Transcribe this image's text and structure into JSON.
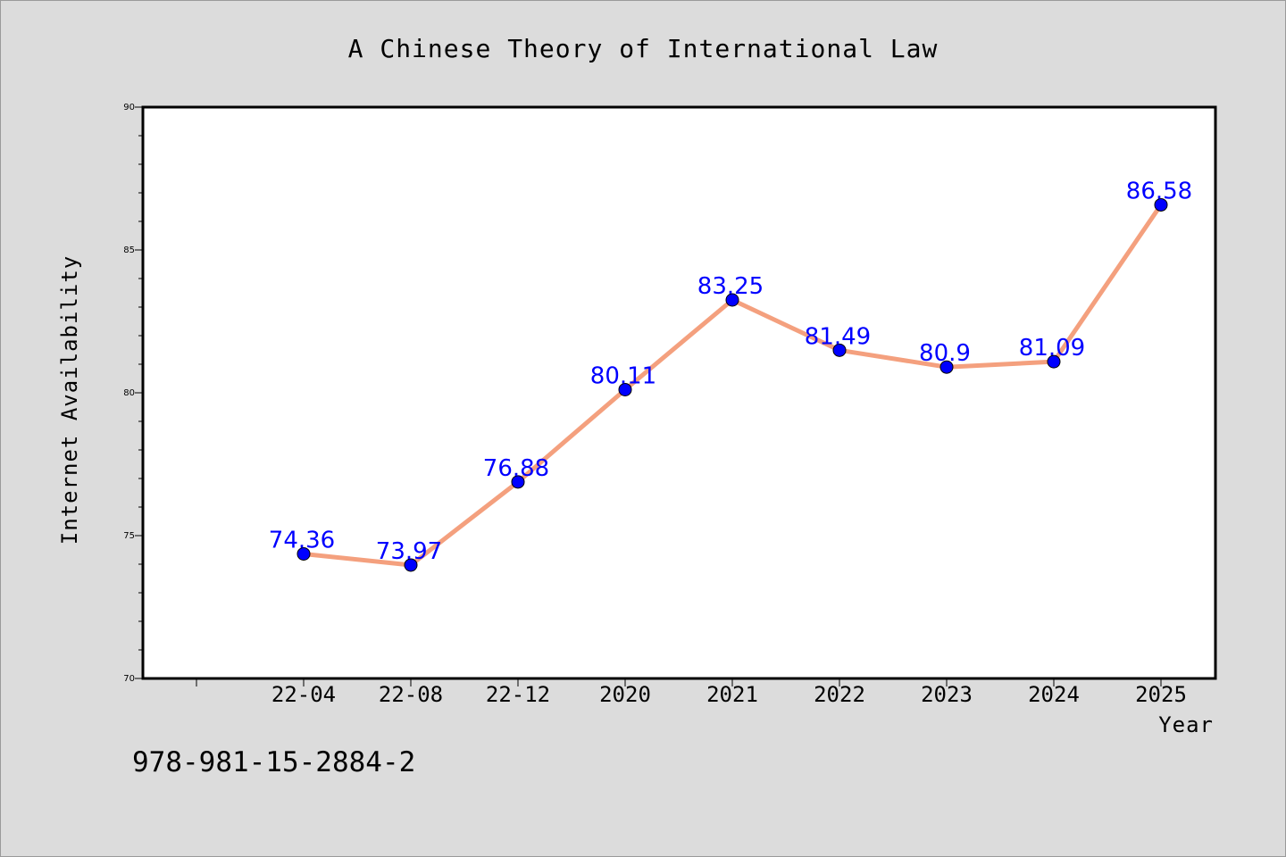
{
  "chart_data": {
    "type": "line",
    "title": "A Chinese Theory of International Law",
    "xlabel": "Year",
    "ylabel": "Internet Availability",
    "categories": [
      "22-04",
      "22-08",
      "22-12",
      "2020",
      "2021",
      "2022",
      "2023",
      "2024",
      "2025"
    ],
    "series": [
      {
        "values": [
          74.36,
          73.97,
          76.88,
          80.11,
          83.25,
          81.49,
          80.9,
          81.09,
          86.58
        ],
        "line_color": "#f4a07e",
        "marker_color": "#0000ff"
      }
    ],
    "data_labels": [
      "74.36",
      "73.97",
      "76.88",
      "80.11",
      "83.25",
      "81.49",
      "80.9",
      "81.09",
      "86.58"
    ],
    "ylim": [
      70,
      90
    ],
    "yticks": [
      "70",
      "75",
      "80",
      "85",
      "90"
    ],
    "grid": false
  },
  "footnote": "978-981-15-2884-2",
  "colors": {
    "background": "#dcdcdc",
    "plot_background": "#ffffff",
    "line": "#f4a07e",
    "marker": "#0000ff",
    "data_label": "#0000ff"
  }
}
